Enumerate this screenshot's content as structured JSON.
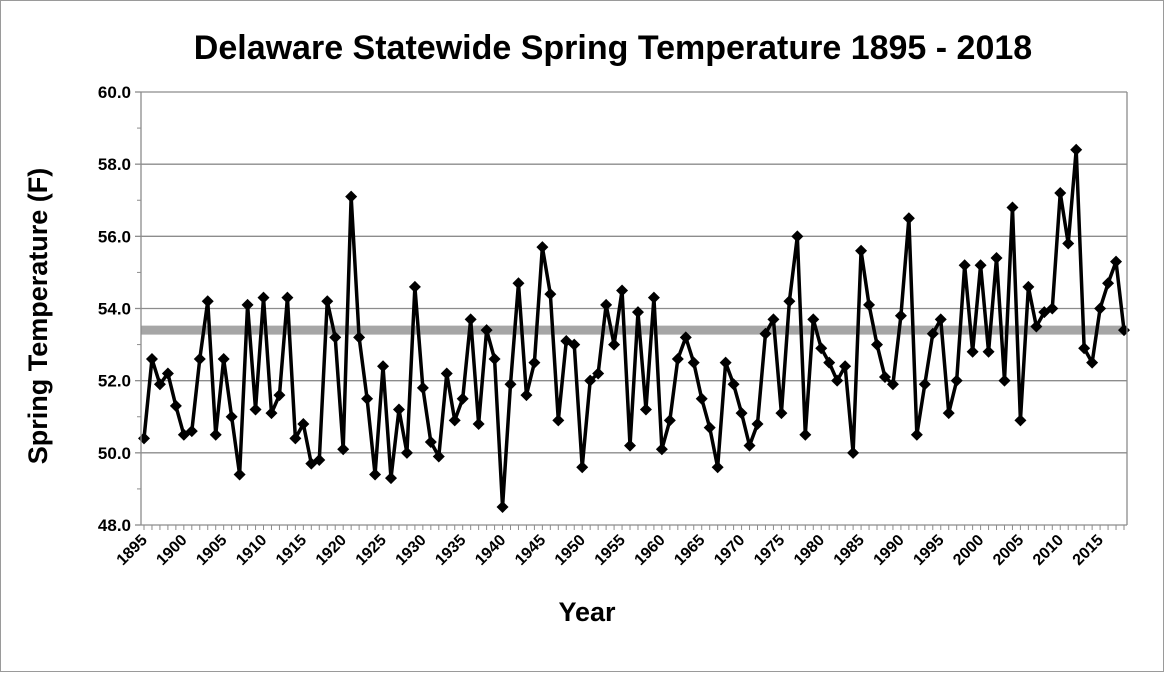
{
  "chart_data": {
    "type": "line",
    "title": "Delaware Statewide Spring Temperature 1895 - 2018",
    "xlabel": "Year",
    "ylabel": "Spring Temperature (F)",
    "ylim": [
      48.0,
      60.0
    ],
    "yticks": [
      "48.0",
      "50.0",
      "52.0",
      "54.0",
      "56.0",
      "58.0",
      "60.0"
    ],
    "xlim": [
      1895,
      2018
    ],
    "xticks": [
      "1895",
      "1900",
      "1905",
      "1910",
      "1915",
      "1920",
      "1925",
      "1930",
      "1935",
      "1940",
      "1945",
      "1950",
      "1955",
      "1960",
      "1965",
      "1970",
      "1975",
      "1980",
      "1985",
      "1990",
      "1995",
      "2000",
      "2005",
      "2010",
      "2015"
    ],
    "grid": "horizontal",
    "legend": "none",
    "colors": {
      "series": "#000000",
      "average_line": "#a6a6a6"
    },
    "average_line": {
      "y": 53.4
    },
    "series": [
      {
        "marker": "diamond",
        "x": [
          1895,
          1896,
          1897,
          1898,
          1899,
          1900,
          1901,
          1902,
          1903,
          1904,
          1905,
          1906,
          1907,
          1908,
          1909,
          1910,
          1911,
          1912,
          1913,
          1914,
          1915,
          1916,
          1917,
          1918,
          1919,
          1920,
          1921,
          1922,
          1923,
          1924,
          1925,
          1926,
          1927,
          1928,
          1929,
          1930,
          1931,
          1932,
          1933,
          1934,
          1935,
          1936,
          1937,
          1938,
          1939,
          1940,
          1941,
          1942,
          1943,
          1944,
          1945,
          1946,
          1947,
          1948,
          1949,
          1950,
          1951,
          1952,
          1953,
          1954,
          1955,
          1956,
          1957,
          1958,
          1959,
          1960,
          1961,
          1962,
          1963,
          1964,
          1965,
          1966,
          1967,
          1968,
          1969,
          1970,
          1971,
          1972,
          1973,
          1974,
          1975,
          1976,
          1977,
          1978,
          1979,
          1980,
          1981,
          1982,
          1983,
          1984,
          1985,
          1986,
          1987,
          1988,
          1989,
          1990,
          1991,
          1992,
          1993,
          1994,
          1995,
          1996,
          1997,
          1998,
          1999,
          2000,
          2001,
          2002,
          2003,
          2004,
          2005,
          2006,
          2007,
          2008,
          2009,
          2010,
          2011,
          2012,
          2013,
          2014,
          2015,
          2016,
          2017,
          2018
        ],
        "values": [
          50.4,
          52.6,
          51.9,
          52.2,
          51.3,
          50.5,
          50.6,
          52.6,
          54.2,
          50.5,
          52.6,
          51.0,
          49.4,
          54.1,
          51.2,
          54.3,
          51.1,
          51.6,
          54.3,
          50.4,
          50.8,
          49.7,
          49.8,
          54.2,
          53.2,
          50.1,
          57.1,
          53.2,
          51.5,
          49.4,
          52.4,
          49.3,
          51.2,
          50.0,
          54.6,
          51.8,
          50.3,
          49.9,
          52.2,
          50.9,
          51.5,
          53.7,
          50.8,
          53.4,
          52.6,
          48.5,
          51.9,
          54.7,
          51.6,
          52.5,
          55.7,
          54.4,
          50.9,
          53.1,
          53.0,
          49.6,
          52.0,
          52.2,
          54.1,
          53.0,
          54.5,
          50.2,
          53.9,
          51.2,
          54.3,
          50.1,
          50.9,
          52.6,
          53.2,
          52.5,
          51.5,
          50.7,
          49.6,
          52.5,
          51.9,
          51.1,
          50.2,
          50.8,
          53.3,
          53.7,
          51.1,
          54.2,
          56.0,
          50.5,
          53.7,
          52.9,
          52.5,
          52.0,
          52.4,
          50.0,
          55.6,
          54.1,
          53.0,
          52.1,
          51.9,
          53.8,
          56.5,
          50.5,
          51.9,
          53.3,
          53.7,
          51.1,
          52.0,
          55.2,
          52.8,
          55.2,
          52.8,
          55.4,
          52.0,
          56.8,
          50.9,
          54.6,
          53.5,
          53.9,
          54.0,
          57.2,
          55.8,
          58.4,
          52.9,
          52.5,
          54.0,
          54.7,
          55.3,
          53.4
        ]
      }
    ]
  }
}
